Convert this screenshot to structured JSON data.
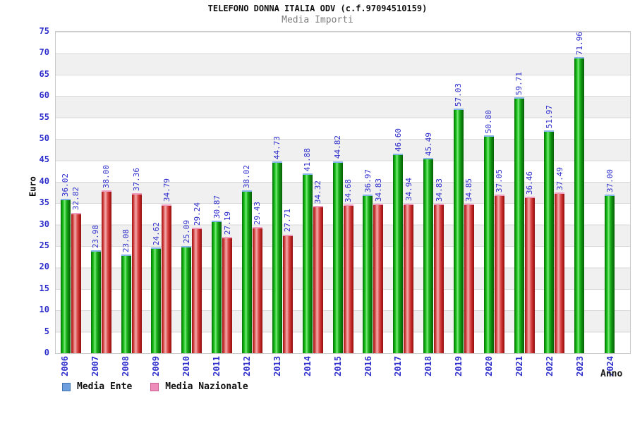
{
  "header": {
    "title": "TELEFONO DONNA ITALIA ODV (c.f.97094510159)",
    "subtitle": "Media Importi"
  },
  "axes": {
    "y_title": "Euro",
    "x_title": "Anno",
    "y_ticks": [
      "0",
      "5",
      "10",
      "15",
      "20",
      "25",
      "30",
      "35",
      "40",
      "45",
      "50",
      "55",
      "60",
      "65",
      "70",
      "75"
    ]
  },
  "legend": {
    "items": [
      {
        "label": "Media Ente",
        "swatch_fill": "#6e9edd",
        "swatch_border": "#3f74ad"
      },
      {
        "label": "Media Nazionale",
        "swatch_fill": "#ee8cba",
        "swatch_border": "#c75f92"
      }
    ]
  },
  "colors": {
    "label_blue": "#2e2ecc",
    "band_gray": "#f0f0f0",
    "gridline": "#d9d9d9",
    "plot_border": "#c9c9c9",
    "green_bar_cap": "#85b4e8",
    "red_bar_cap": "#ef9cc1",
    "green_bar_body": "#1fb81f",
    "red_bar_body": "#d94040"
  },
  "chart_data": {
    "type": "bar",
    "title": "TELEFONO DONNA ITALIA ODV (c.f.97094510159)",
    "subtitle": "Media Importi",
    "xlabel": "Anno",
    "ylabel": "Euro",
    "ylim": [
      0,
      75
    ],
    "y_tick_step": 5,
    "grid": "horizontal bands, gridline every 5",
    "legend_position": "bottom-left",
    "categories": [
      "2006",
      "2007",
      "2008",
      "2009",
      "2010",
      "2011",
      "2012",
      "2013",
      "2014",
      "2015",
      "2016",
      "2017",
      "2018",
      "2019",
      "2020",
      "2021",
      "2022",
      "2023",
      "2024"
    ],
    "series": [
      {
        "name": "Media Ente",
        "color": "green",
        "values": [
          36.02,
          23.98,
          23.08,
          24.62,
          25.09,
          30.87,
          38.02,
          44.73,
          41.88,
          44.82,
          36.97,
          46.6,
          45.49,
          57.03,
          50.8,
          59.71,
          51.97,
          71.96,
          37.0
        ],
        "labels": [
          "36.02",
          "23.98",
          "23.08",
          "24.62",
          "25.09",
          "30.87",
          "38.02",
          "44.73",
          "41.88",
          "44.82",
          "36.97",
          "46.60",
          "45.49",
          "57.03",
          "50.80",
          "59.71",
          "51.97",
          "71.96",
          "37.00"
        ]
      },
      {
        "name": "Media Nazionale",
        "color": "red",
        "values": [
          32.82,
          38.0,
          37.36,
          34.79,
          29.24,
          27.19,
          29.43,
          27.71,
          34.32,
          34.68,
          34.83,
          34.94,
          34.83,
          34.85,
          37.05,
          36.46,
          37.49,
          null,
          null
        ],
        "labels": [
          "32.82",
          "38.00",
          "37.36",
          "34.79",
          "29.24",
          "27.19",
          "29.43",
          "27.71",
          "34.32",
          "34.68",
          "34.83",
          "34.94",
          "34.83",
          "34.85",
          "37.05",
          "36.46",
          "37.49",
          null,
          null
        ]
      }
    ]
  }
}
